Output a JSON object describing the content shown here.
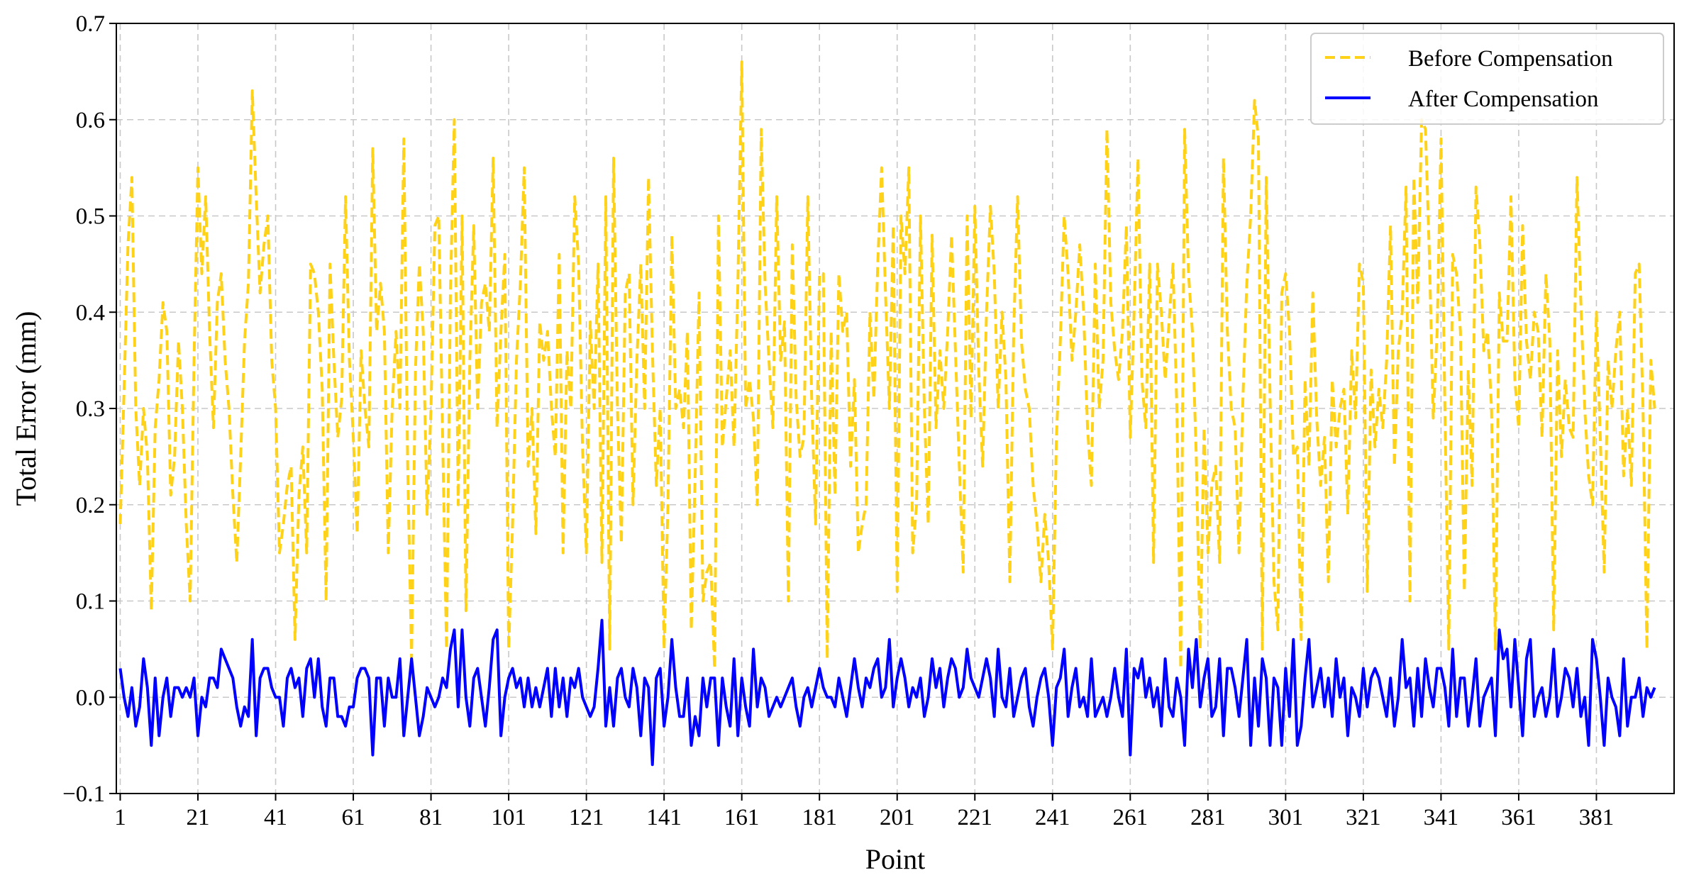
{
  "chart_data": {
    "type": "line",
    "title": "",
    "xlabel": "Point",
    "ylabel": "Total Error (mm)",
    "xlim": [
      0,
      401
    ],
    "ylim": [
      -0.1,
      0.7
    ],
    "xticks": [
      1,
      21,
      41,
      61,
      81,
      101,
      121,
      141,
      161,
      181,
      201,
      221,
      241,
      261,
      281,
      301,
      321,
      341,
      361,
      381
    ],
    "yticks": [
      -0.1,
      0.0,
      0.1,
      0.2,
      0.3,
      0.4,
      0.5,
      0.6,
      0.7
    ],
    "ytick_labels": [
      "−0.1",
      "0.0",
      "0.1",
      "0.2",
      "0.3",
      "0.4",
      "0.5",
      "0.6",
      "0.7"
    ],
    "grid": true,
    "legend": "top-right",
    "x_start": 1,
    "series": [
      {
        "name": "Before Compensation",
        "color": "#FFD21A",
        "style": "dashed",
        "values": [
          0.18,
          0.32,
          0.47,
          0.54,
          0.3,
          0.22,
          0.3,
          0.25,
          0.09,
          0.28,
          0.33,
          0.41,
          0.38,
          0.21,
          0.25,
          0.37,
          0.3,
          0.18,
          0.1,
          0.35,
          0.55,
          0.44,
          0.52,
          0.38,
          0.28,
          0.41,
          0.44,
          0.35,
          0.3,
          0.21,
          0.14,
          0.25,
          0.37,
          0.43,
          0.63,
          0.52,
          0.42,
          0.47,
          0.5,
          0.35,
          0.3,
          0.15,
          0.18,
          0.22,
          0.24,
          0.06,
          0.21,
          0.26,
          0.15,
          0.45,
          0.44,
          0.4,
          0.32,
          0.1,
          0.45,
          0.35,
          0.27,
          0.31,
          0.52,
          0.35,
          0.27,
          0.17,
          0.36,
          0.3,
          0.26,
          0.57,
          0.38,
          0.43,
          0.38,
          0.15,
          0.3,
          0.38,
          0.3,
          0.58,
          0.24,
          0.04,
          0.34,
          0.45,
          0.38,
          0.19,
          0.3,
          0.49,
          0.5,
          0.27,
          0.05,
          0.42,
          0.6,
          0.2,
          0.5,
          0.09,
          0.35,
          0.49,
          0.3,
          0.41,
          0.43,
          0.38,
          0.56,
          0.28,
          0.38,
          0.46,
          0.05,
          0.18,
          0.35,
          0.43,
          0.55,
          0.24,
          0.3,
          0.17,
          0.39,
          0.35,
          0.38,
          0.3,
          0.25,
          0.46,
          0.15,
          0.36,
          0.3,
          0.52,
          0.45,
          0.26,
          0.15,
          0.39,
          0.3,
          0.45,
          0.14,
          0.52,
          0.05,
          0.56,
          0.3,
          0.16,
          0.42,
          0.44,
          0.2,
          0.35,
          0.45,
          0.3,
          0.54,
          0.36,
          0.22,
          0.3,
          0.05,
          0.2,
          0.48,
          0.3,
          0.32,
          0.28,
          0.38,
          0.07,
          0.23,
          0.42,
          0.1,
          0.13,
          0.14,
          0.03,
          0.5,
          0.26,
          0.31,
          0.36,
          0.26,
          0.43,
          0.66,
          0.3,
          0.33,
          0.29,
          0.2,
          0.59,
          0.43,
          0.35,
          0.28,
          0.52,
          0.35,
          0.39,
          0.1,
          0.47,
          0.31,
          0.25,
          0.27,
          0.52,
          0.31,
          0.18,
          0.44,
          0.44,
          0.04,
          0.38,
          0.21,
          0.44,
          0.38,
          0.4,
          0.24,
          0.33,
          0.15,
          0.18,
          0.2,
          0.4,
          0.31,
          0.45,
          0.55,
          0.42,
          0.3,
          0.49,
          0.11,
          0.5,
          0.44,
          0.55,
          0.15,
          0.2,
          0.5,
          0.3,
          0.18,
          0.48,
          0.28,
          0.36,
          0.3,
          0.38,
          0.48,
          0.36,
          0.24,
          0.13,
          0.5,
          0.29,
          0.51,
          0.34,
          0.24,
          0.4,
          0.51,
          0.44,
          0.3,
          0.4,
          0.33,
          0.12,
          0.38,
          0.52,
          0.37,
          0.32,
          0.3,
          0.22,
          0.18,
          0.12,
          0.19,
          0.14,
          0.05,
          0.27,
          0.37,
          0.5,
          0.44,
          0.35,
          0.4,
          0.47,
          0.4,
          0.28,
          0.22,
          0.45,
          0.3,
          0.35,
          0.59,
          0.41,
          0.36,
          0.33,
          0.38,
          0.49,
          0.27,
          0.4,
          0.56,
          0.33,
          0.28,
          0.45,
          0.14,
          0.45,
          0.4,
          0.33,
          0.39,
          0.45,
          0.3,
          0.03,
          0.59,
          0.44,
          0.38,
          0.25,
          0.05,
          0.28,
          0.15,
          0.22,
          0.24,
          0.14,
          0.56,
          0.38,
          0.3,
          0.28,
          0.15,
          0.31,
          0.43,
          0.5,
          0.62,
          0.58,
          0.05,
          0.54,
          0.31,
          0.12,
          0.07,
          0.42,
          0.44,
          0.38,
          0.25,
          0.26,
          0.06,
          0.33,
          0.24,
          0.42,
          0.29,
          0.22,
          0.27,
          0.12,
          0.33,
          0.26,
          0.3,
          0.32,
          0.19,
          0.36,
          0.29,
          0.45,
          0.43,
          0.11,
          0.34,
          0.26,
          0.32,
          0.28,
          0.35,
          0.49,
          0.24,
          0.36,
          0.4,
          0.53,
          0.1,
          0.54,
          0.41,
          0.6,
          0.59,
          0.46,
          0.29,
          0.38,
          0.58,
          0.3,
          0.05,
          0.46,
          0.44,
          0.38,
          0.11,
          0.34,
          0.22,
          0.53,
          0.47,
          0.36,
          0.38,
          0.3,
          0.05,
          0.42,
          0.37,
          0.37,
          0.52,
          0.33,
          0.28,
          0.49,
          0.37,
          0.33,
          0.4,
          0.38,
          0.27,
          0.44,
          0.37,
          0.07,
          0.36,
          0.25,
          0.33,
          0.28,
          0.27,
          0.54,
          0.41,
          0.3,
          0.23,
          0.2,
          0.4,
          0.27,
          0.13,
          0.35,
          0.3,
          0.36,
          0.4,
          0.23,
          0.3,
          0.22,
          0.44,
          0.45,
          0.3,
          0.05,
          0.35,
          0.3
        ]
      },
      {
        "name": "After Compensation",
        "color": "#0000FF",
        "style": "solid",
        "values": [
          0.03,
          0.0,
          -0.02,
          0.01,
          -0.03,
          -0.01,
          0.04,
          0.01,
          -0.05,
          0.02,
          -0.04,
          0.0,
          0.02,
          -0.02,
          0.01,
          0.01,
          0.0,
          0.01,
          0.0,
          0.02,
          -0.04,
          0.0,
          -0.01,
          0.02,
          0.02,
          0.01,
          0.05,
          0.04,
          0.03,
          0.02,
          -0.01,
          -0.03,
          -0.01,
          -0.02,
          0.06,
          -0.04,
          0.02,
          0.03,
          0.03,
          0.01,
          0.0,
          0.0,
          -0.03,
          0.02,
          0.03,
          0.01,
          0.02,
          -0.02,
          0.03,
          0.04,
          0.0,
          0.04,
          -0.01,
          -0.03,
          0.02,
          0.02,
          -0.02,
          -0.02,
          -0.03,
          -0.01,
          -0.01,
          0.02,
          0.03,
          0.03,
          0.02,
          -0.06,
          0.02,
          0.02,
          -0.03,
          0.02,
          0.0,
          0.0,
          0.04,
          -0.04,
          0.0,
          0.04,
          0.0,
          -0.04,
          -0.02,
          0.01,
          0.0,
          -0.01,
          0.0,
          0.02,
          0.01,
          0.05,
          0.07,
          -0.01,
          0.07,
          0.0,
          -0.03,
          0.02,
          0.03,
          0.0,
          -0.03,
          0.01,
          0.06,
          0.07,
          -0.04,
          0.0,
          0.02,
          0.03,
          0.01,
          0.02,
          -0.01,
          0.02,
          -0.01,
          0.01,
          -0.01,
          0.01,
          0.03,
          -0.02,
          0.03,
          -0.01,
          0.02,
          -0.02,
          0.02,
          0.01,
          0.03,
          0.0,
          -0.01,
          -0.02,
          -0.01,
          0.03,
          0.08,
          -0.03,
          0.01,
          -0.03,
          0.02,
          0.03,
          0.0,
          -0.01,
          0.03,
          0.01,
          -0.04,
          0.02,
          0.01,
          -0.07,
          0.02,
          0.03,
          -0.03,
          0.0,
          0.06,
          0.01,
          -0.02,
          -0.02,
          0.02,
          -0.05,
          -0.02,
          -0.04,
          0.02,
          -0.01,
          0.02,
          0.02,
          -0.05,
          0.02,
          -0.01,
          -0.03,
          0.04,
          -0.04,
          0.02,
          -0.01,
          -0.03,
          0.05,
          -0.01,
          0.02,
          0.01,
          -0.02,
          -0.01,
          0.0,
          -0.01,
          0.0,
          0.01,
          0.02,
          -0.01,
          -0.03,
          0.0,
          0.01,
          -0.01,
          0.01,
          0.03,
          0.01,
          0.0,
          0.0,
          -0.01,
          0.02,
          0.0,
          -0.02,
          0.01,
          0.04,
          0.01,
          -0.01,
          0.02,
          0.01,
          0.03,
          0.04,
          0.0,
          0.01,
          0.06,
          -0.01,
          0.02,
          0.04,
          0.02,
          -0.01,
          0.01,
          0.0,
          0.02,
          -0.02,
          0.0,
          0.04,
          0.01,
          0.03,
          -0.01,
          0.02,
          0.04,
          0.03,
          0.0,
          0.01,
          0.05,
          0.02,
          0.01,
          0.0,
          0.02,
          0.04,
          0.02,
          -0.02,
          0.05,
          0.0,
          -0.01,
          0.03,
          -0.02,
          0.0,
          0.02,
          0.03,
          -0.01,
          -0.03,
          0.0,
          0.02,
          0.03,
          0.0,
          -0.05,
          0.01,
          0.02,
          0.05,
          -0.02,
          0.01,
          0.03,
          -0.01,
          0.0,
          -0.02,
          0.04,
          -0.02,
          -0.01,
          0.0,
          -0.02,
          0.0,
          0.03,
          0.0,
          -0.02,
          0.05,
          -0.06,
          0.03,
          0.02,
          0.04,
          0.0,
          0.02,
          -0.01,
          0.01,
          -0.03,
          0.04,
          -0.01,
          -0.02,
          0.02,
          0.0,
          -0.05,
          0.05,
          0.01,
          0.06,
          -0.01,
          0.02,
          0.04,
          -0.02,
          -0.01,
          0.04,
          -0.04,
          0.03,
          0.03,
          0.01,
          -0.02,
          0.02,
          0.06,
          -0.05,
          0.02,
          -0.03,
          0.04,
          0.02,
          -0.05,
          0.02,
          0.01,
          -0.05,
          0.03,
          -0.02,
          0.06,
          -0.05,
          -0.03,
          0.02,
          0.06,
          -0.01,
          0.01,
          0.03,
          -0.01,
          0.02,
          -0.02,
          0.04,
          0.0,
          0.02,
          -0.04,
          0.01,
          0.0,
          -0.02,
          0.03,
          -0.01,
          0.02,
          0.03,
          0.02,
          0.0,
          -0.02,
          0.02,
          -0.03,
          0.0,
          0.06,
          0.01,
          0.02,
          -0.03,
          0.03,
          -0.02,
          0.04,
          0.01,
          -0.01,
          0.03,
          0.03,
          0.01,
          -0.03,
          0.05,
          -0.02,
          0.02,
          0.02,
          -0.03,
          0.0,
          0.04,
          -0.03,
          0.0,
          0.01,
          0.02,
          -0.04,
          0.07,
          0.04,
          0.05,
          -0.01,
          0.06,
          0.01,
          -0.04,
          0.04,
          0.06,
          -0.02,
          0.0,
          0.01,
          -0.02,
          0.0,
          0.05,
          -0.02,
          0.0,
          0.03,
          0.02,
          -0.01,
          0.03,
          -0.02,
          0.0,
          -0.05,
          0.06,
          0.04,
          0.0,
          -0.05,
          0.02,
          0.0,
          -0.01,
          -0.04,
          0.04,
          -0.03,
          0.0,
          0.0,
          0.02,
          -0.02,
          0.01,
          0.0,
          0.01
        ]
      }
    ]
  }
}
